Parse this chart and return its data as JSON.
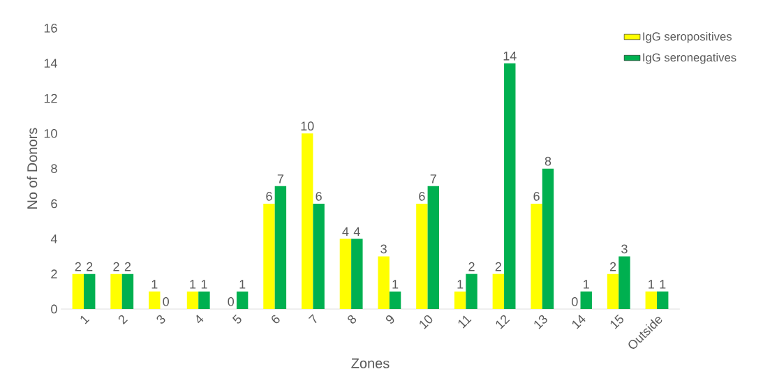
{
  "chart_data": {
    "type": "bar",
    "xlabel": "Zones",
    "ylabel": "No of Donors",
    "categories": [
      "1",
      "2",
      "3",
      "4",
      "5",
      "6",
      "7",
      "8",
      "9",
      "10",
      "11",
      "12",
      "13",
      "14",
      "15",
      "Outside"
    ],
    "series": [
      {
        "name": "IgG seropositives",
        "color": "#ffff00",
        "values": [
          2,
          2,
          1,
          1,
          0,
          6,
          10,
          4,
          3,
          6,
          1,
          2,
          6,
          0,
          2,
          1
        ]
      },
      {
        "name": "IgG seronegatives",
        "color": "#00b050",
        "values": [
          2,
          2,
          0,
          1,
          1,
          7,
          6,
          4,
          1,
          7,
          2,
          14,
          8,
          1,
          3,
          1
        ]
      }
    ],
    "ylim": [
      0,
      16
    ],
    "yticks": [
      0,
      2,
      4,
      6,
      8,
      10,
      12,
      14,
      16
    ],
    "data_labels": true,
    "legend": "top right"
  }
}
